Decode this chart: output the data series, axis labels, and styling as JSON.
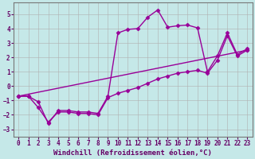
{
  "xlabel": "Windchill (Refroidissement éolien,°C)",
  "background_color": "#c5e8e8",
  "grid_color": "#b0b0b0",
  "line_color": "#990099",
  "xlim": [
    -0.5,
    23.5
  ],
  "ylim": [
    -3.5,
    5.8
  ],
  "yticks": [
    -3,
    -2,
    -1,
    0,
    1,
    2,
    3,
    4,
    5
  ],
  "xticks": [
    0,
    1,
    2,
    3,
    4,
    5,
    6,
    7,
    8,
    9,
    10,
    11,
    12,
    13,
    14,
    15,
    16,
    17,
    18,
    19,
    20,
    21,
    22,
    23
  ],
  "line1_x": [
    0,
    1,
    2,
    3,
    4,
    5,
    6,
    7,
    8,
    9,
    10,
    11,
    12,
    13,
    14,
    15,
    16,
    17,
    18,
    19,
    20,
    21,
    22,
    23
  ],
  "line1_y": [
    -0.7,
    -0.7,
    -1.1,
    -2.6,
    -1.7,
    -1.7,
    -1.8,
    -1.8,
    -1.9,
    -0.7,
    3.7,
    3.95,
    4.0,
    4.8,
    5.3,
    4.1,
    4.2,
    4.25,
    4.05,
    1.0,
    2.1,
    3.7,
    2.2,
    2.6
  ],
  "line2_x": [
    0,
    23
  ],
  "line2_y": [
    -0.7,
    2.5
  ],
  "line3_x": [
    0,
    1,
    2,
    3,
    4,
    5,
    6,
    7,
    8,
    9,
    10,
    11,
    12,
    13,
    14,
    15,
    16,
    17,
    18,
    19,
    20,
    21,
    22,
    23
  ],
  "line3_y": [
    -0.7,
    -0.7,
    -1.5,
    -2.5,
    -1.8,
    -1.8,
    -1.9,
    -1.9,
    -2.0,
    -0.8,
    -0.5,
    -0.3,
    -0.1,
    0.2,
    0.5,
    0.7,
    0.9,
    1.0,
    1.1,
    0.9,
    1.8,
    3.5,
    2.1,
    2.5
  ],
  "marker": "D",
  "marker_size": 2.5,
  "line_width": 1.0,
  "font_color": "#660066",
  "font_family": "monospace",
  "label_fontsize": 6.5,
  "tick_fontsize": 5.5
}
